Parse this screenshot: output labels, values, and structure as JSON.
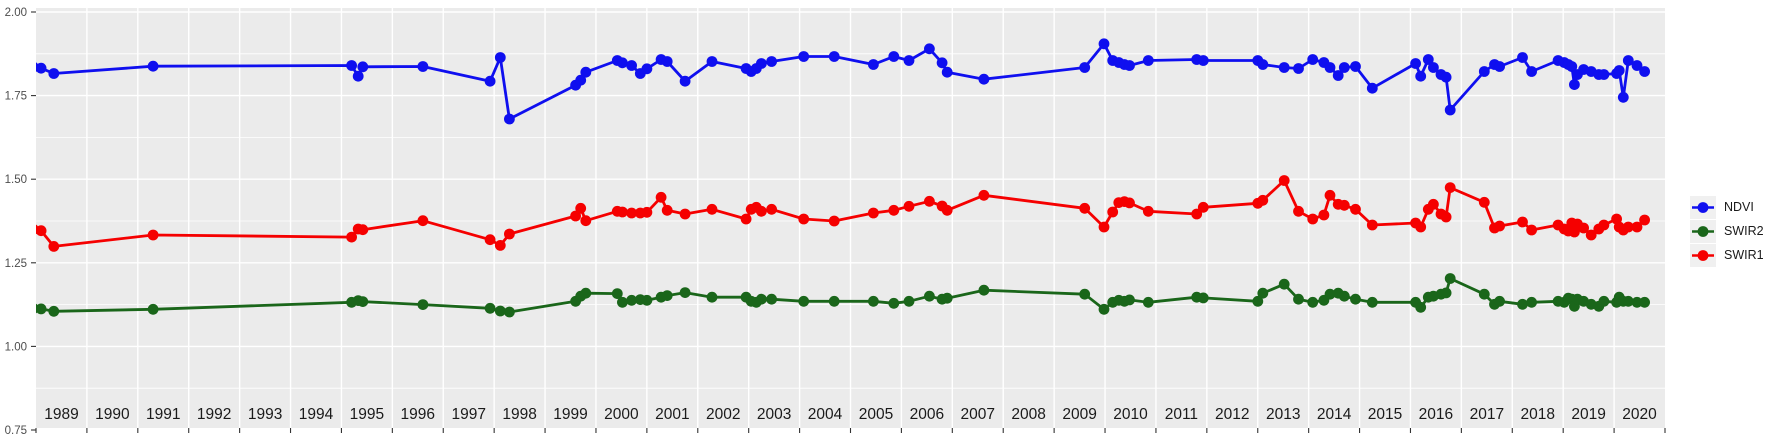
{
  "chart_data": {
    "type": "line",
    "title": "",
    "xlabel": "",
    "ylabel": "",
    "xlim": [
      1989,
      2021
    ],
    "ylim": [
      0.75,
      2.0
    ],
    "grid": "on",
    "legend_position": "right",
    "marker": "circle",
    "y_tick_values": [
      2.0,
      1.75,
      1.5,
      1.25,
      1.0,
      0.75
    ],
    "y_tick_labels": [
      "2.00",
      "1.75",
      "1.50",
      "1.25",
      "1.00",
      "0.75"
    ],
    "x_tick_labels": [
      "1989",
      "1990",
      "1991",
      "1992",
      "1993",
      "1994",
      "1995",
      "1996",
      "1997",
      "1998",
      "1999",
      "2000",
      "2001",
      "2002",
      "2003",
      "2004",
      "2005",
      "2006",
      "2007",
      "2008",
      "2009",
      "2010",
      "2011",
      "2012",
      "2013",
      "2014",
      "2015",
      "2016",
      "2017",
      "2018",
      "2019",
      "2020"
    ],
    "x": [
      1988.95,
      1989.1,
      1989.35,
      1991.3,
      1995.2,
      1995.33,
      1995.42,
      1996.6,
      1997.92,
      1998.12,
      1998.3,
      1999.6,
      1999.7,
      1999.8,
      2000.42,
      2000.52,
      2000.7,
      2000.87,
      2001.0,
      2001.28,
      2001.4,
      2001.75,
      2002.28,
      2002.95,
      2003.05,
      2003.15,
      2003.25,
      2003.45,
      2004.08,
      2004.68,
      2005.45,
      2005.85,
      2006.15,
      2006.55,
      2006.8,
      2006.9,
      2007.62,
      2009.6,
      2009.98,
      2010.15,
      2010.27,
      2010.38,
      2010.48,
      2010.85,
      2011.8,
      2011.93,
      2013.0,
      2013.1,
      2013.52,
      2013.8,
      2014.08,
      2014.3,
      2014.42,
      2014.58,
      2014.7,
      2014.92,
      2015.25,
      2016.1,
      2016.2,
      2016.35,
      2016.45,
      2016.6,
      2016.7,
      2016.78,
      2017.45,
      2017.65,
      2017.75,
      2018.2,
      2018.38,
      2018.9,
      2019.02,
      2019.1,
      2019.17,
      2019.22,
      2019.28,
      2019.4,
      2019.55,
      2019.7,
      2019.8,
      2020.05,
      2020.1,
      2020.18,
      2020.28,
      2020.45,
      2020.6
    ],
    "series": [
      {
        "name": "NDVI",
        "color": "#0f0fef",
        "values": [
          1.835,
          1.832,
          1.816,
          1.838,
          1.84,
          1.808,
          1.836,
          1.837,
          1.793,
          1.864,
          1.68,
          1.781,
          1.796,
          1.82,
          1.855,
          1.848,
          1.84,
          1.816,
          1.83,
          1.858,
          1.852,
          1.793,
          1.852,
          1.831,
          1.822,
          1.831,
          1.846,
          1.852,
          1.867,
          1.867,
          1.843,
          1.867,
          1.855,
          1.89,
          1.848,
          1.82,
          1.799,
          1.834,
          1.905,
          1.855,
          1.849,
          1.843,
          1.84,
          1.855,
          1.858,
          1.855,
          1.855,
          1.843,
          1.834,
          1.831,
          1.858,
          1.849,
          1.834,
          1.81,
          1.834,
          1.837,
          1.772,
          1.846,
          1.808,
          1.858,
          1.834,
          1.813,
          1.805,
          1.707,
          1.822,
          1.843,
          1.837,
          1.864,
          1.822,
          1.855,
          1.849,
          1.843,
          1.837,
          1.783,
          1.813,
          1.828,
          1.822,
          1.813,
          1.813,
          1.816,
          1.825,
          1.745,
          1.855,
          1.84,
          1.822
        ]
      },
      {
        "name": "SWIR2",
        "color": "#1a661a",
        "values": [
          1.113,
          1.112,
          1.105,
          1.111,
          1.132,
          1.137,
          1.134,
          1.125,
          1.114,
          1.106,
          1.103,
          1.135,
          1.15,
          1.159,
          1.158,
          1.132,
          1.138,
          1.14,
          1.138,
          1.147,
          1.152,
          1.161,
          1.147,
          1.147,
          1.135,
          1.132,
          1.141,
          1.141,
          1.135,
          1.135,
          1.135,
          1.129,
          1.135,
          1.15,
          1.141,
          1.144,
          1.168,
          1.156,
          1.111,
          1.132,
          1.138,
          1.135,
          1.139,
          1.132,
          1.147,
          1.145,
          1.135,
          1.159,
          1.186,
          1.141,
          1.132,
          1.138,
          1.156,
          1.159,
          1.15,
          1.141,
          1.132,
          1.132,
          1.117,
          1.147,
          1.15,
          1.156,
          1.16,
          1.203,
          1.156,
          1.126,
          1.135,
          1.126,
          1.132,
          1.135,
          1.132,
          1.144,
          1.141,
          1.12,
          1.141,
          1.135,
          1.126,
          1.12,
          1.135,
          1.132,
          1.147,
          1.135,
          1.135,
          1.132,
          1.132
        ]
      },
      {
        "name": "SWIR1",
        "color": "#f50000",
        "values": [
          1.35,
          1.346,
          1.299,
          1.333,
          1.327,
          1.351,
          1.349,
          1.376,
          1.319,
          1.302,
          1.336,
          1.39,
          1.413,
          1.376,
          1.404,
          1.402,
          1.399,
          1.399,
          1.401,
          1.446,
          1.407,
          1.396,
          1.41,
          1.381,
          1.41,
          1.416,
          1.404,
          1.41,
          1.381,
          1.375,
          1.399,
          1.407,
          1.419,
          1.434,
          1.42,
          1.407,
          1.452,
          1.413,
          1.357,
          1.402,
          1.43,
          1.433,
          1.429,
          1.404,
          1.396,
          1.416,
          1.428,
          1.437,
          1.496,
          1.404,
          1.381,
          1.393,
          1.452,
          1.425,
          1.422,
          1.41,
          1.363,
          1.369,
          1.357,
          1.41,
          1.425,
          1.396,
          1.387,
          1.475,
          1.431,
          1.354,
          1.36,
          1.372,
          1.348,
          1.363,
          1.351,
          1.345,
          1.369,
          1.342,
          1.366,
          1.354,
          1.333,
          1.351,
          1.363,
          1.381,
          1.357,
          1.348,
          1.357,
          1.357,
          1.378
        ]
      }
    ]
  },
  "legend": {
    "items": [
      {
        "label": "NDVI"
      },
      {
        "label": "SWIR2"
      },
      {
        "label": "SWIR1"
      }
    ]
  },
  "theme": {
    "outer_bg": "#ffffff",
    "panel_bg": "#ebebeb",
    "grid_color": "#ffffff",
    "tick_color": "#333333",
    "y_label_color": "#4d4d4d",
    "x_label_color": "#1a1a1a",
    "legend_key_bg": "#f0f0f0",
    "legend_text_color": "#1a1a1a"
  }
}
